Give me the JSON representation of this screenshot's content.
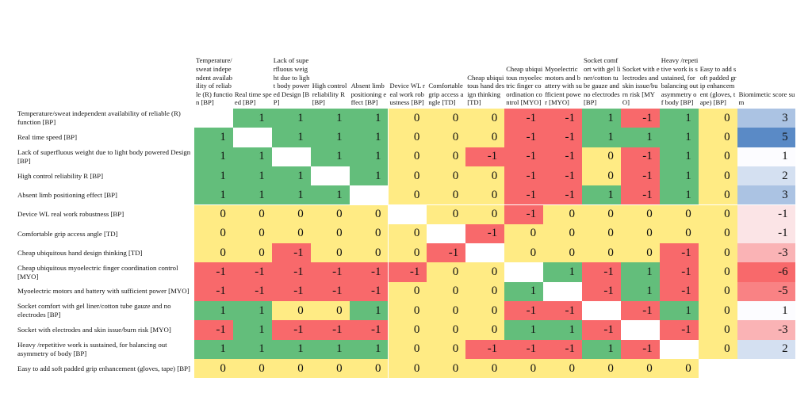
{
  "table": {
    "columns": [
      "Temperature/sweat independent availability of reliable (R) function [BP]",
      "Real time speed [BP]",
      "Lack of superfluous weight due to light body powered Design [BP]",
      "High control reliability R [BP]",
      "Absent limb positioning effect [BP]",
      "Device WL real work robustness [BP]",
      "Comfortable grip access angle [TD]",
      "Cheap ubiquitous hand design thinking [TD]",
      "Cheap ubiquitous myoelectric finger coordination control [MYO]",
      "Myoelectric motors and battery with sufficient power [MYO]",
      "Socket comfort with gel liner/cotton tube gauze and no electrodes [BP]",
      "Socket with electrodes and skin issue/burn risk [MYO]",
      "Heavy /repetitive work is sustained, for balancing out asymmetry of body [BP]",
      "Easy to add soft padded grip enhancement (gloves, tape) [BP]",
      "Biomimetic score sum"
    ],
    "rows": [
      {
        "label": "Temperature/sweat independent availability of reliable (R) function [BP]",
        "values": [
          null,
          1,
          1,
          1,
          1,
          0,
          0,
          0,
          -1,
          -1,
          1,
          -1,
          1,
          0
        ],
        "score": 3
      },
      {
        "label": "Real time speed [BP]",
        "values": [
          1,
          null,
          1,
          1,
          1,
          0,
          0,
          0,
          -1,
          -1,
          1,
          1,
          1,
          0
        ],
        "score": 5
      },
      {
        "label": "Lack of superfluous weight due to light body powered Design [BP]",
        "values": [
          1,
          1,
          null,
          1,
          1,
          0,
          0,
          -1,
          -1,
          -1,
          0,
          -1,
          1,
          0
        ],
        "score": 1
      },
      {
        "label": "High control reliability R [BP]",
        "values": [
          1,
          1,
          1,
          null,
          1,
          0,
          0,
          0,
          -1,
          -1,
          0,
          -1,
          1,
          0
        ],
        "score": 2
      },
      {
        "label": "Absent limb positioning effect [BP]",
        "values": [
          1,
          1,
          1,
          1,
          null,
          0,
          0,
          0,
          -1,
          -1,
          1,
          -1,
          1,
          0
        ],
        "score": 3
      },
      {
        "label": "Device WL real work robustness [BP]",
        "values": [
          0,
          0,
          0,
          0,
          0,
          null,
          0,
          0,
          -1,
          0,
          0,
          0,
          0,
          0
        ],
        "score": -1
      },
      {
        "label": "Comfortable grip access angle [TD]",
        "values": [
          0,
          0,
          0,
          0,
          0,
          0,
          null,
          -1,
          0,
          0,
          0,
          0,
          0,
          0
        ],
        "score": -1
      },
      {
        "label": "Cheap ubiquitous hand design thinking [TD]",
        "values": [
          0,
          0,
          -1,
          0,
          0,
          0,
          -1,
          null,
          0,
          0,
          0,
          0,
          -1,
          0
        ],
        "score": -3
      },
      {
        "label": "Cheap ubiquitous myoelectric finger coordination control [MYO]",
        "values": [
          -1,
          -1,
          -1,
          -1,
          -1,
          -1,
          0,
          0,
          null,
          1,
          -1,
          1,
          -1,
          0
        ],
        "score": -6
      },
      {
        "label": "Myoelectric motors and battery with sufficient power [MYO]",
        "values": [
          -1,
          -1,
          -1,
          -1,
          -1,
          0,
          0,
          0,
          1,
          null,
          -1,
          1,
          -1,
          0
        ],
        "score": -5
      },
      {
        "label": "Socket comfort with gel liner/cotton tube gauze and no electrodes [BP]",
        "values": [
          1,
          1,
          0,
          0,
          1,
          0,
          0,
          0,
          -1,
          -1,
          null,
          -1,
          1,
          0
        ],
        "score": 1
      },
      {
        "label": "Socket with electrodes and skin issue/burn risk [MYO]",
        "values": [
          -1,
          1,
          -1,
          -1,
          -1,
          0,
          0,
          0,
          1,
          1,
          -1,
          null,
          -1,
          0
        ],
        "score": -3
      },
      {
        "label": "Heavy /repetitive work is sustained, for balancing out asymmetry of body [BP]",
        "values": [
          1,
          1,
          1,
          1,
          1,
          0,
          0,
          -1,
          -1,
          -1,
          1,
          -1,
          null,
          0
        ],
        "score": 2
      },
      {
        "label": "Easy to add soft padded grip enhancement (gloves, tape) [BP]",
        "values": [
          0,
          0,
          0,
          0,
          0,
          0,
          0,
          0,
          0,
          0,
          0,
          0,
          0,
          null
        ],
        "score": null
      }
    ]
  }
}
